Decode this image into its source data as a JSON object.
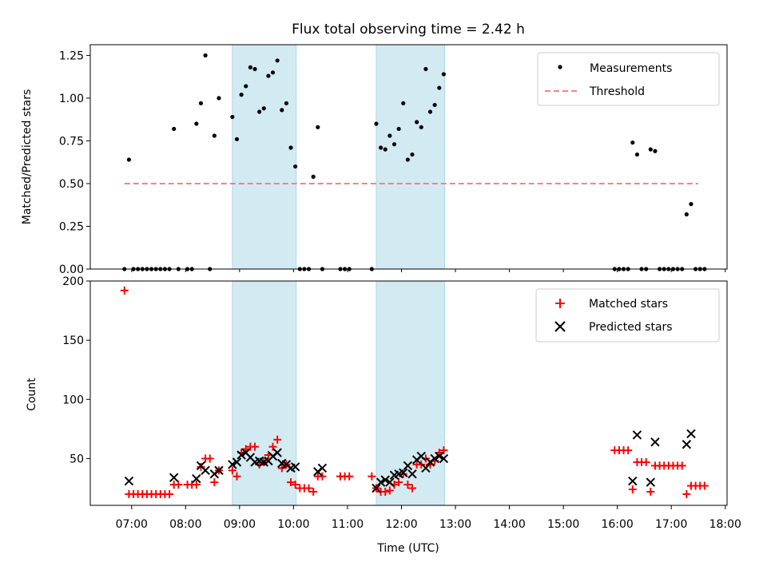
{
  "title": "Flux total observing time = 2.42 h",
  "chart_data": [
    {
      "type": "scatter",
      "ylabel": "Matched/Predicted stars",
      "ylim": [
        0,
        1.3125
      ],
      "yticks": [
        0,
        0.25,
        0.5,
        0.75,
        1.0,
        1.25
      ],
      "ytick_labels": [
        "0.00",
        "0.25",
        "0.50",
        "0.75",
        "1.00",
        "1.25"
      ],
      "legend_position": "top-right",
      "legend": [
        "Measurements",
        "Threshold"
      ],
      "colors": {
        "measurements": "#000000",
        "threshold": "#ff7f7f",
        "band": "#add8e6"
      },
      "threshold": {
        "name": "Threshold",
        "value": 0.5,
        "x_start": "06:52",
        "x_end": "17:30"
      },
      "shaded_intervals": [
        [
          "08:52",
          "10:03"
        ],
        [
          "11:32",
          "12:48"
        ]
      ],
      "series": [
        {
          "name": "Measurements",
          "points": [
            [
              "06:52",
              0.0
            ],
            [
              "06:57",
              0.64
            ],
            [
              "07:02",
              0.0
            ],
            [
              "07:07",
              0.0
            ],
            [
              "07:12",
              0.0
            ],
            [
              "07:17",
              0.0
            ],
            [
              "07:22",
              0.0
            ],
            [
              "07:27",
              0.0
            ],
            [
              "07:32",
              0.0
            ],
            [
              "07:37",
              0.0
            ],
            [
              "07:42",
              0.0
            ],
            [
              "07:47",
              0.82
            ],
            [
              "07:52",
              0.0
            ],
            [
              "08:02",
              0.0
            ],
            [
              "08:07",
              0.0
            ],
            [
              "08:12",
              0.85
            ],
            [
              "08:17",
              0.97
            ],
            [
              "08:22",
              1.25
            ],
            [
              "08:27",
              0.0
            ],
            [
              "08:32",
              0.78
            ],
            [
              "08:37",
              1.0
            ],
            [
              "08:52",
              0.89
            ],
            [
              "08:57",
              0.76
            ],
            [
              "09:02",
              1.02
            ],
            [
              "09:07",
              1.07
            ],
            [
              "09:12",
              1.18
            ],
            [
              "09:17",
              1.17
            ],
            [
              "09:22",
              0.92
            ],
            [
              "09:27",
              0.94
            ],
            [
              "09:32",
              1.13
            ],
            [
              "09:37",
              1.15
            ],
            [
              "09:42",
              1.22
            ],
            [
              "09:47",
              0.93
            ],
            [
              "09:52",
              0.97
            ],
            [
              "09:57",
              0.71
            ],
            [
              "10:02",
              0.6
            ],
            [
              "10:07",
              0.0
            ],
            [
              "10:12",
              0.0
            ],
            [
              "10:17",
              0.0
            ],
            [
              "10:22",
              0.54
            ],
            [
              "10:27",
              0.83
            ],
            [
              "10:32",
              0.0
            ],
            [
              "10:52",
              0.0
            ],
            [
              "10:57",
              0.0
            ],
            [
              "11:02",
              0.0
            ],
            [
              "11:27",
              0.0
            ],
            [
              "11:32",
              0.85
            ],
            [
              "11:37",
              0.71
            ],
            [
              "11:42",
              0.7
            ],
            [
              "11:47",
              0.78
            ],
            [
              "11:52",
              0.73
            ],
            [
              "11:57",
              0.82
            ],
            [
              "12:02",
              0.97
            ],
            [
              "12:07",
              0.64
            ],
            [
              "12:12",
              0.67
            ],
            [
              "12:17",
              0.86
            ],
            [
              "12:22",
              0.83
            ],
            [
              "12:27",
              1.17
            ],
            [
              "12:32",
              0.92
            ],
            [
              "12:37",
              0.96
            ],
            [
              "12:42",
              1.06
            ],
            [
              "12:47",
              1.14
            ],
            [
              "15:57",
              0.0
            ],
            [
              "16:02",
              0.0
            ],
            [
              "16:07",
              0.0
            ],
            [
              "16:12",
              0.0
            ],
            [
              "16:17",
              0.74
            ],
            [
              "16:22",
              0.67
            ],
            [
              "16:27",
              0.0
            ],
            [
              "16:32",
              0.0
            ],
            [
              "16:37",
              0.7
            ],
            [
              "16:42",
              0.69
            ],
            [
              "16:47",
              0.0
            ],
            [
              "16:52",
              0.0
            ],
            [
              "16:57",
              0.0
            ],
            [
              "17:02",
              0.0
            ],
            [
              "17:07",
              0.0
            ],
            [
              "17:12",
              0.0
            ],
            [
              "17:17",
              0.32
            ],
            [
              "17:22",
              0.38
            ],
            [
              "17:27",
              0.0
            ],
            [
              "17:32",
              0.0
            ],
            [
              "17:37",
              0.0
            ]
          ]
        }
      ]
    },
    {
      "type": "scatter",
      "ylabel": "Count",
      "xlabel": "Time (UTC)",
      "ylim": [
        10.5,
        200
      ],
      "yticks": [
        50,
        100,
        150,
        200
      ],
      "ytick_labels": [
        "50",
        "100",
        "150",
        "200"
      ],
      "xlim": [
        "06:14",
        "18:02"
      ],
      "xticks": [
        "07:00",
        "08:00",
        "09:00",
        "10:00",
        "11:00",
        "12:00",
        "13:00",
        "14:00",
        "15:00",
        "16:00",
        "17:00",
        "18:00"
      ],
      "legend_position": "top-right",
      "legend": [
        "Matched stars",
        "Predicted stars"
      ],
      "colors": {
        "matched": "#ff0000",
        "predicted": "#000000",
        "band": "#add8e6"
      },
      "shaded_intervals": [
        [
          "08:52",
          "10:03"
        ],
        [
          "11:32",
          "12:48"
        ]
      ],
      "series": [
        {
          "name": "Matched stars",
          "points": [
            [
              "06:52",
              192
            ],
            [
              "06:57",
              20
            ],
            [
              "07:02",
              20
            ],
            [
              "07:07",
              20
            ],
            [
              "07:12",
              20
            ],
            [
              "07:17",
              20
            ],
            [
              "07:22",
              20
            ],
            [
              "07:27",
              20
            ],
            [
              "07:32",
              20
            ],
            [
              "07:37",
              20
            ],
            [
              "07:42",
              20
            ],
            [
              "07:47",
              28
            ],
            [
              "07:52",
              28
            ],
            [
              "08:02",
              28
            ],
            [
              "08:07",
              28
            ],
            [
              "08:12",
              28
            ],
            [
              "08:17",
              43
            ],
            [
              "08:22",
              50
            ],
            [
              "08:27",
              50
            ],
            [
              "08:32",
              30
            ],
            [
              "08:37",
              40
            ],
            [
              "08:52",
              40
            ],
            [
              "08:57",
              35
            ],
            [
              "09:02",
              55
            ],
            [
              "09:07",
              58
            ],
            [
              "09:12",
              60
            ],
            [
              "09:17",
              60
            ],
            [
              "09:22",
              45
            ],
            [
              "09:27",
              47
            ],
            [
              "09:32",
              53
            ],
            [
              "09:37",
              60
            ],
            [
              "09:42",
              66
            ],
            [
              "09:47",
              42
            ],
            [
              "09:52",
              45
            ],
            [
              "09:57",
              30
            ],
            [
              "10:02",
              28
            ],
            [
              "10:07",
              25
            ],
            [
              "10:12",
              25
            ],
            [
              "10:17",
              25
            ],
            [
              "10:22",
              22
            ],
            [
              "10:27",
              35
            ],
            [
              "10:32",
              35
            ],
            [
              "10:52",
              35
            ],
            [
              "10:57",
              35
            ],
            [
              "11:02",
              35
            ],
            [
              "11:27",
              35
            ],
            [
              "11:32",
              25
            ],
            [
              "11:37",
              22
            ],
            [
              "11:42",
              22
            ],
            [
              "11:47",
              23
            ],
            [
              "11:52",
              28
            ],
            [
              "11:57",
              30
            ],
            [
              "12:02",
              37
            ],
            [
              "12:07",
              28
            ],
            [
              "12:12",
              25
            ],
            [
              "12:17",
              45
            ],
            [
              "12:22",
              45
            ],
            [
              "12:27",
              50
            ],
            [
              "12:32",
              45
            ],
            [
              "12:37",
              48
            ],
            [
              "12:42",
              55
            ],
            [
              "12:47",
              57
            ],
            [
              "15:57",
              57
            ],
            [
              "16:02",
              57
            ],
            [
              "16:07",
              57
            ],
            [
              "16:12",
              57
            ],
            [
              "16:17",
              24
            ],
            [
              "16:22",
              47
            ],
            [
              "16:27",
              47
            ],
            [
              "16:32",
              47
            ],
            [
              "16:37",
              22
            ],
            [
              "16:42",
              44
            ],
            [
              "16:47",
              44
            ],
            [
              "16:52",
              44
            ],
            [
              "16:57",
              44
            ],
            [
              "17:02",
              44
            ],
            [
              "17:07",
              44
            ],
            [
              "17:12",
              44
            ],
            [
              "17:17",
              20
            ],
            [
              "17:22",
              27
            ],
            [
              "17:27",
              27
            ],
            [
              "17:32",
              27
            ],
            [
              "17:37",
              27
            ]
          ]
        },
        {
          "name": "Predicted stars",
          "points": [
            [
              "06:57",
              31
            ],
            [
              "07:47",
              34
            ],
            [
              "08:12",
              33
            ],
            [
              "08:17",
              44
            ],
            [
              "08:22",
              40
            ],
            [
              "08:32",
              37
            ],
            [
              "08:37",
              40
            ],
            [
              "08:52",
              45
            ],
            [
              "08:57",
              47
            ],
            [
              "09:02",
              53
            ],
            [
              "09:07",
              55
            ],
            [
              "09:12",
              51
            ],
            [
              "09:17",
              47
            ],
            [
              "09:22",
              48
            ],
            [
              "09:27",
              47
            ],
            [
              "09:32",
              48
            ],
            [
              "09:37",
              52
            ],
            [
              "09:42",
              55
            ],
            [
              "09:47",
              46
            ],
            [
              "09:52",
              45
            ],
            [
              "09:57",
              42
            ],
            [
              "10:02",
              43
            ],
            [
              "10:27",
              39
            ],
            [
              "10:32",
              42
            ],
            [
              "11:32",
              25
            ],
            [
              "11:37",
              30
            ],
            [
              "11:42",
              32
            ],
            [
              "11:47",
              30
            ],
            [
              "11:52",
              36
            ],
            [
              "11:57",
              37
            ],
            [
              "12:02",
              38
            ],
            [
              "12:07",
              44
            ],
            [
              "12:12",
              37
            ],
            [
              "12:17",
              49
            ],
            [
              "12:22",
              52
            ],
            [
              "12:27",
              42
            ],
            [
              "12:32",
              47
            ],
            [
              "12:37",
              50
            ],
            [
              "12:42",
              52
            ],
            [
              "12:47",
              50
            ],
            [
              "16:17",
              31
            ],
            [
              "16:22",
              70
            ],
            [
              "16:37",
              30
            ],
            [
              "16:42",
              64
            ],
            [
              "17:17",
              62
            ],
            [
              "17:22",
              71
            ]
          ]
        }
      ]
    }
  ]
}
